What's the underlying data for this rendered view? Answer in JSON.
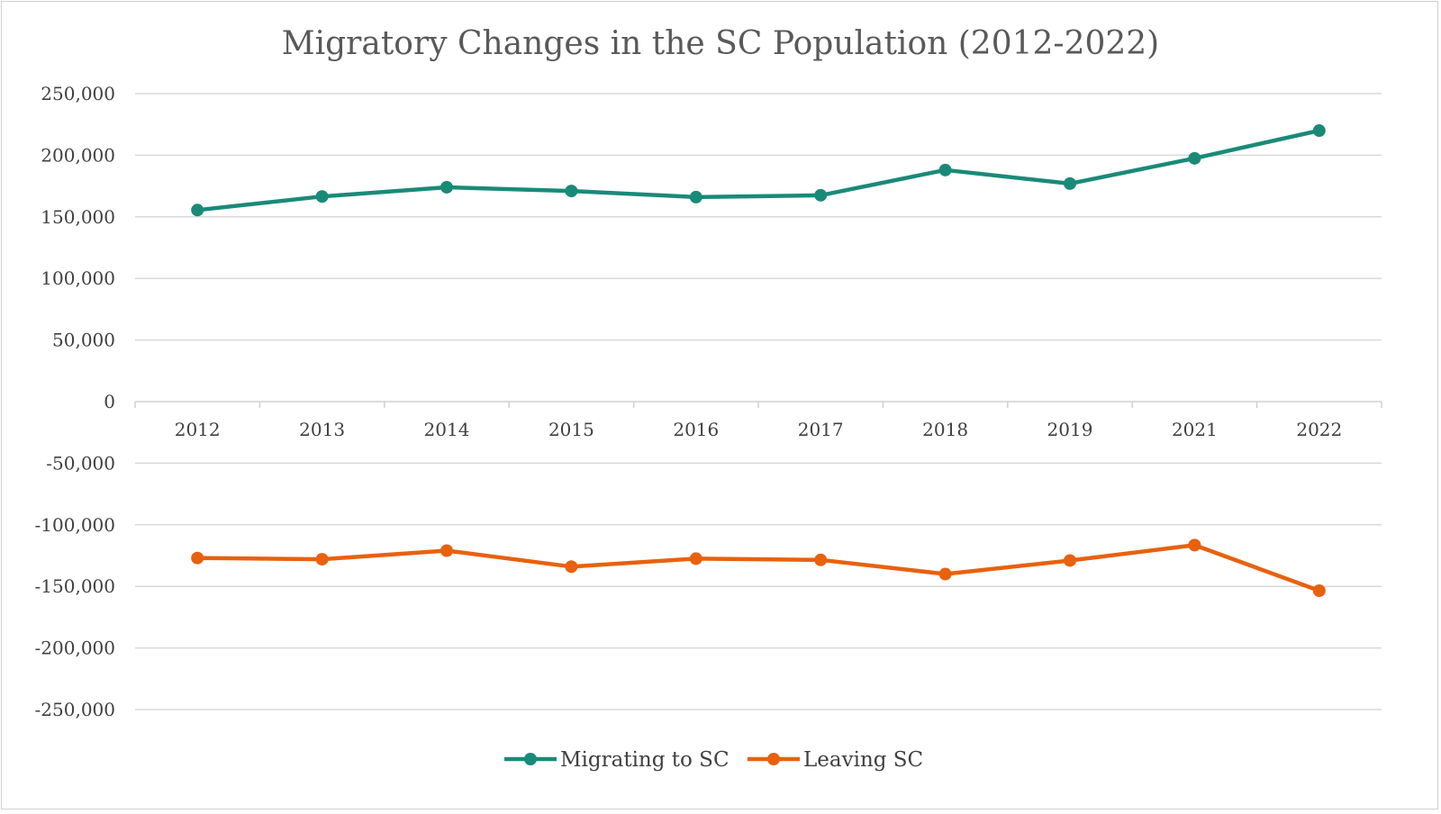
{
  "chart_data": {
    "type": "line",
    "title": "Migratory Changes in the SC Population (2012-2022)",
    "xlabel": "",
    "ylabel": "",
    "categories": [
      "2012",
      "2013",
      "2014",
      "2015",
      "2016",
      "2017",
      "2018",
      "2019",
      "2021",
      "2022"
    ],
    "ylim": [
      -250000,
      250000
    ],
    "yticks": [
      250000,
      200000,
      150000,
      100000,
      50000,
      0,
      -50000,
      -100000,
      -150000,
      -200000,
      -250000
    ],
    "ytick_labels": [
      "250,000",
      "200,000",
      "150,000",
      "100,000",
      "50,000",
      "0",
      "-50,000",
      "-100,000",
      "-150,000",
      "-200,000",
      "-250,000"
    ],
    "grid": true,
    "legend_position": "bottom",
    "series": [
      {
        "name": "Migrating to SC",
        "color": "#1a8a78",
        "values": [
          155500,
          166500,
          174000,
          171000,
          166000,
          167500,
          188000,
          177000,
          197500,
          220000
        ]
      },
      {
        "name": "Leaving SC",
        "color": "#e8610e",
        "values": [
          -127000,
          -128000,
          -121000,
          -134000,
          -127500,
          -128500,
          -140000,
          -129000,
          -116500,
          -153500
        ]
      }
    ]
  }
}
